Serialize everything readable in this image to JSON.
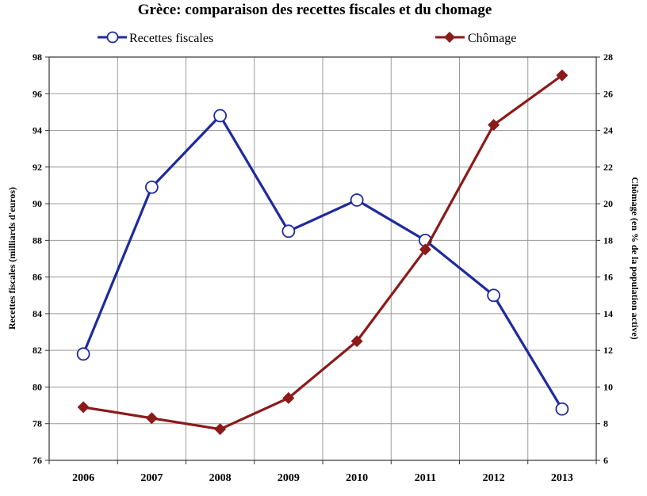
{
  "chart_data": {
    "type": "line",
    "title": "Grèce: comparaison des recettes fiscales et du chomage",
    "categories": [
      "2006",
      "2007",
      "2008",
      "2009",
      "2010",
      "2011",
      "2012",
      "2013"
    ],
    "series": [
      {
        "name": "Recettes fiscales",
        "axis": "left",
        "color": "#1f2a9e",
        "marker": "circle-open",
        "values": [
          81.8,
          90.9,
          94.8,
          88.5,
          90.2,
          88.0,
          85.0,
          78.8
        ]
      },
      {
        "name": "Chômage",
        "axis": "right",
        "color": "#8b1a1a",
        "marker": "diamond",
        "values": [
          8.9,
          8.3,
          7.7,
          9.4,
          12.5,
          17.5,
          24.3,
          27.0
        ]
      }
    ],
    "ylabel": "Recettes fiscales (milliards d'euros)",
    "y2label": "Chômage (en % de la population active)",
    "ylim": [
      76,
      98
    ],
    "y2lim": [
      6,
      28
    ],
    "yticks": [
      "76",
      "78",
      "80",
      "82",
      "84",
      "86",
      "88",
      "90",
      "92",
      "94",
      "96",
      "98"
    ],
    "y2ticks": [
      "6",
      "8",
      "10",
      "12",
      "14",
      "16",
      "18",
      "20",
      "22",
      "24",
      "26",
      "28"
    ],
    "grid": true,
    "legend": "top"
  }
}
